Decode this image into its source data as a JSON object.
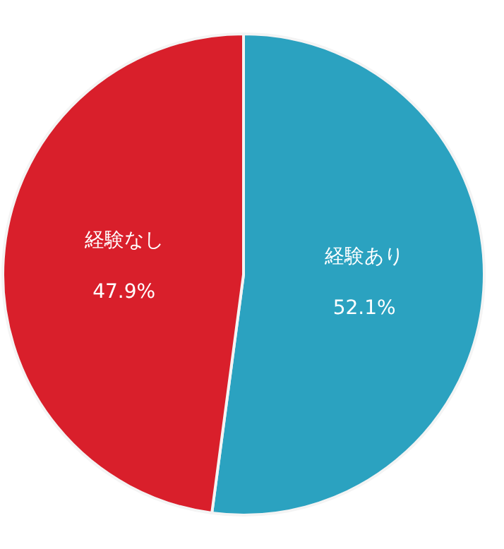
{
  "chart_data": {
    "type": "pie",
    "categories": [
      "経験あり",
      "経験なし"
    ],
    "values": [
      52.1,
      47.9
    ],
    "colors": [
      "#2ba2c0",
      "#d91f2b"
    ],
    "value_labels": [
      "52.1%",
      "47.9%"
    ],
    "legend": false
  }
}
